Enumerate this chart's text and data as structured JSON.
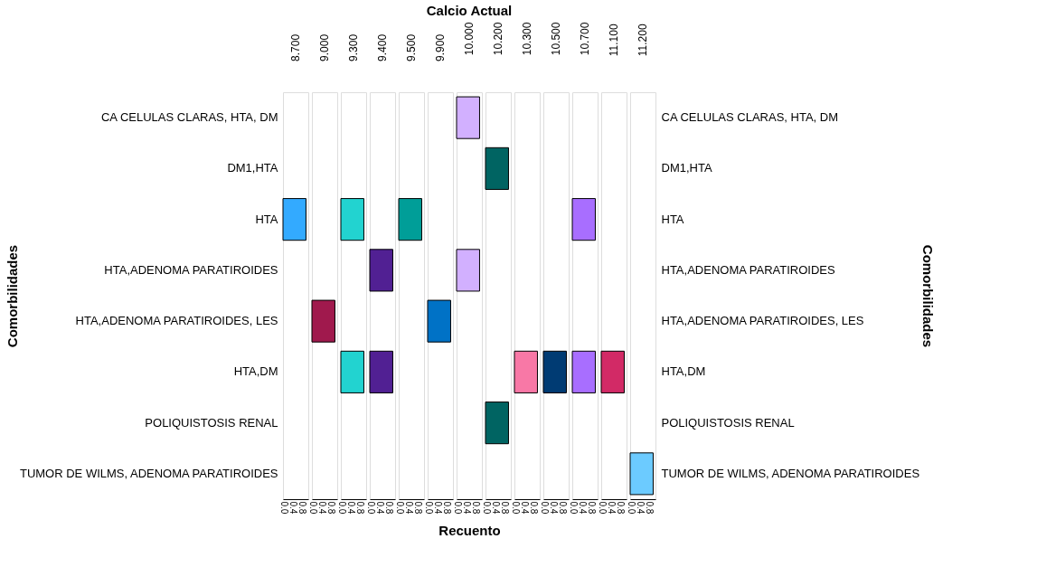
{
  "chart_data": [
    {
      "type": "bar",
      "orientation": "horizontal",
      "title": "8.700",
      "ylabel": "Comorbilidades",
      "categories": [
        "CA CELULAS CLARAS, HTA, DM",
        "DM1,HTA",
        "HTA",
        "HTA,ADENOMA PARATIROIDES",
        "HTA,ADENOMA PARATIROIDES, LES",
        "HTA,DM",
        "POLIQUISTOSIS RENAL",
        "TUMOR DE WILMS, ADENOMA PARATIROIDES"
      ],
      "values": [
        null,
        null,
        1,
        null,
        null,
        null,
        null,
        null
      ],
      "colors": [
        null,
        null,
        "#33aaff",
        null,
        null,
        null,
        null,
        null
      ],
      "xlim": [
        0,
        1.1
      ],
      "xticks": [
        {
          "value": 0,
          "label": "0.0"
        },
        {
          "value": 0.4,
          "label": "0.4"
        },
        {
          "value": 0.8,
          "label": "0.8"
        }
      ],
      "grid": false
    },
    {
      "type": "bar",
      "orientation": "horizontal",
      "title": "9.000",
      "tick_labels": "x",
      "values": [
        null,
        null,
        null,
        null,
        1,
        null,
        null,
        null
      ],
      "colors": [
        null,
        null,
        null,
        null,
        "#a0194d",
        null,
        null,
        null
      ],
      "xlim": [
        0,
        1.1
      ],
      "xticks": [
        {
          "value": 0,
          "label": "0.0"
        },
        {
          "value": 0.4,
          "label": "0.4"
        },
        {
          "value": 0.8,
          "label": "0.8"
        }
      ],
      "grid": false
    },
    {
      "type": "bar",
      "orientation": "horizontal",
      "title": "9.300",
      "tick_labels": "x",
      "values": [
        null,
        null,
        1,
        null,
        null,
        1,
        null,
        null
      ],
      "colors": [
        null,
        null,
        "#22d3d0",
        null,
        null,
        "#22d3d0",
        null,
        null
      ],
      "xlim": [
        0,
        1.1
      ],
      "xticks": [
        {
          "value": 0,
          "label": "0.0"
        },
        {
          "value": 0.4,
          "label": "0.4"
        },
        {
          "value": 0.8,
          "label": "0.8"
        }
      ],
      "grid": false
    },
    {
      "type": "bar",
      "orientation": "horizontal",
      "title": "9.400",
      "tick_labels": "x",
      "values": [
        null,
        null,
        null,
        1,
        null,
        1,
        null,
        null
      ],
      "colors": [
        null,
        null,
        null,
        "#512093",
        null,
        "#512093",
        null,
        null
      ],
      "xlim": [
        0,
        1.1
      ],
      "xticks": [
        {
          "value": 0,
          "label": "0.0"
        },
        {
          "value": 0.4,
          "label": "0.4"
        },
        {
          "value": 0.8,
          "label": "0.8"
        }
      ],
      "grid": false
    },
    {
      "type": "bar",
      "orientation": "horizontal",
      "title": "9.500",
      "tick_labels": "x",
      "values": [
        null,
        null,
        1,
        null,
        null,
        null,
        null,
        null
      ],
      "colors": [
        null,
        null,
        "#009e98",
        null,
        null,
        null,
        null,
        null
      ],
      "xlim": [
        0,
        1.1
      ],
      "xticks": [
        {
          "value": 0,
          "label": "0.0"
        },
        {
          "value": 0.4,
          "label": "0.4"
        },
        {
          "value": 0.8,
          "label": "0.8"
        }
      ],
      "grid": false
    },
    {
      "type": "bar",
      "orientation": "horizontal",
      "title": "9.900",
      "tick_labels": "x",
      "values": [
        null,
        null,
        null,
        null,
        1,
        null,
        null,
        null
      ],
      "colors": [
        null,
        null,
        null,
        null,
        "#0072c6",
        null,
        null,
        null
      ],
      "xlim": [
        0,
        1.1
      ],
      "xticks": [
        {
          "value": 0,
          "label": "0.0"
        },
        {
          "value": 0.4,
          "label": "0.4"
        },
        {
          "value": 0.8,
          "label": "0.8"
        }
      ],
      "grid": false
    },
    {
      "type": "bar",
      "orientation": "horizontal",
      "title": "10.000",
      "xlabel": "Recuento",
      "annotations": [
        "Calcio Actual"
      ],
      "tick_labels": "x",
      "values": [
        1,
        null,
        null,
        1,
        null,
        null,
        null,
        null
      ],
      "colors": [
        "#d2b0ff",
        null,
        null,
        "#d2b0ff",
        null,
        null,
        null,
        null
      ],
      "xlim": [
        0,
        1.1
      ],
      "xticks": [
        {
          "value": 0,
          "label": "0.0"
        },
        {
          "value": 0.4,
          "label": "0.4"
        },
        {
          "value": 0.8,
          "label": "0.8"
        }
      ],
      "grid": false
    },
    {
      "type": "bar",
      "orientation": "horizontal",
      "title": "10.200",
      "tick_labels": "x",
      "values": [
        null,
        1,
        null,
        null,
        null,
        null,
        1,
        null
      ],
      "colors": [
        null,
        "#006462",
        null,
        null,
        null,
        null,
        "#006462",
        null
      ],
      "xlim": [
        0,
        1.1
      ],
      "xticks": [
        {
          "value": 0,
          "label": "0.0"
        },
        {
          "value": 0.4,
          "label": "0.4"
        },
        {
          "value": 0.8,
          "label": "0.8"
        }
      ],
      "grid": false
    },
    {
      "type": "bar",
      "orientation": "horizontal",
      "title": "10.300",
      "tick_labels": "x",
      "values": [
        null,
        null,
        null,
        null,
        null,
        1,
        null,
        null
      ],
      "colors": [
        null,
        null,
        null,
        null,
        null,
        "#f878a6",
        null,
        null
      ],
      "xlim": [
        0,
        1.1
      ],
      "xticks": [
        {
          "value": 0,
          "label": "0.0"
        },
        {
          "value": 0.4,
          "label": "0.4"
        },
        {
          "value": 0.8,
          "label": "0.8"
        }
      ],
      "grid": false
    },
    {
      "type": "bar",
      "orientation": "horizontal",
      "title": "10.500",
      "tick_labels": "x",
      "values": [
        null,
        null,
        null,
        null,
        null,
        1,
        null,
        null
      ],
      "colors": [
        null,
        null,
        null,
        null,
        null,
        "#003b73",
        null,
        null
      ],
      "xlim": [
        0,
        1.1
      ],
      "xticks": [
        {
          "value": 0,
          "label": "0.0"
        },
        {
          "value": 0.4,
          "label": "0.4"
        },
        {
          "value": 0.8,
          "label": "0.8"
        }
      ],
      "grid": false
    },
    {
      "type": "bar",
      "orientation": "horizontal",
      "title": "10.700",
      "tick_labels": "x",
      "values": [
        null,
        null,
        1,
        null,
        null,
        1,
        null,
        null
      ],
      "colors": [
        null,
        null,
        "#a86eff",
        null,
        null,
        "#a86eff",
        null,
        null
      ],
      "xlim": [
        0,
        1.1
      ],
      "xticks": [
        {
          "value": 0,
          "label": "0.0"
        },
        {
          "value": 0.4,
          "label": "0.4"
        },
        {
          "value": 0.8,
          "label": "0.8"
        }
      ],
      "grid": false
    },
    {
      "type": "bar",
      "orientation": "horizontal",
      "title": "11.100",
      "tick_labels": "x",
      "values": [
        null,
        null,
        null,
        null,
        null,
        1,
        null,
        null
      ],
      "colors": [
        null,
        null,
        null,
        null,
        null,
        "#d22a66",
        null,
        null
      ],
      "xlim": [
        0,
        1.1
      ],
      "xticks": [
        {
          "value": 0,
          "label": "0.0"
        },
        {
          "value": 0.4,
          "label": "0.4"
        },
        {
          "value": 0.8,
          "label": "0.8"
        }
      ],
      "grid": false
    },
    {
      "type": "bar",
      "orientation": "horizontal",
      "title": "11.200",
      "y2label": "Comorbilidades",
      "categories": [
        "CA CELULAS CLARAS, HTA, DM",
        "DM1,HTA",
        "HTA",
        "HTA,ADENOMA PARATIROIDES",
        "HTA,ADENOMA PARATIROIDES, LES",
        "HTA,DM",
        "POLIQUISTOSIS RENAL",
        "TUMOR DE WILMS, ADENOMA PARATIROIDES"
      ],
      "values": [
        null,
        null,
        null,
        null,
        null,
        null,
        null,
        1
      ],
      "colors": [
        null,
        null,
        null,
        null,
        null,
        null,
        null,
        "#6ccbff"
      ],
      "xlim": [
        0,
        1.1
      ],
      "xticks": [
        {
          "value": 0,
          "label": "0.0"
        },
        {
          "value": 0.4,
          "label": "0.4"
        },
        {
          "value": 0.8,
          "label": "0.8"
        }
      ],
      "grid": false
    }
  ]
}
